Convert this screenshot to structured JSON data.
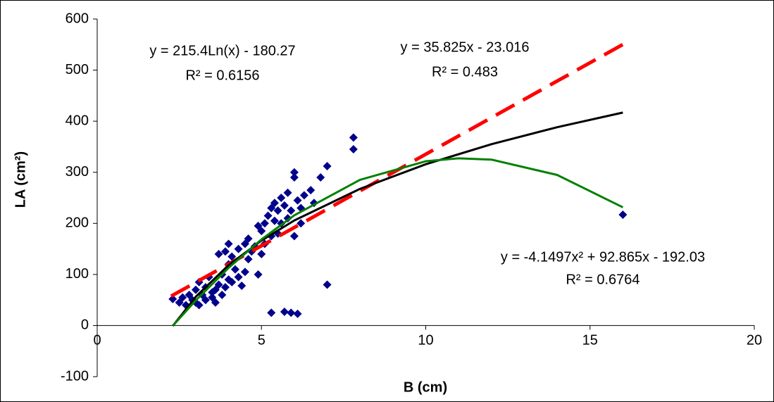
{
  "chart_data": {
    "type": "scatter",
    "x_label": "B (cm)",
    "y_label": "LA (cm²)",
    "xlim": [
      0,
      20
    ],
    "ylim": [
      -100,
      600
    ],
    "xticks": [
      0,
      5,
      10,
      15,
      20
    ],
    "yticks": [
      -100,
      0,
      100,
      200,
      300,
      400,
      500,
      600
    ],
    "annotations": [
      "y = 215.4Ln(x) - 180.27",
      "R² = 0.6156",
      "y = 35.825x - 23.016",
      "R² = 0.483",
      "y = -4.1497x² + 92.865x - 192.03",
      "R² = 0.6764"
    ],
    "series": [
      {
        "name": "data",
        "kind": "points",
        "color": "#00008b",
        "x": [
          2.3,
          2.5,
          2.6,
          2.7,
          2.8,
          2.9,
          3.0,
          3.0,
          3.1,
          3.1,
          3.2,
          3.3,
          3.3,
          3.4,
          3.5,
          3.5,
          3.6,
          3.6,
          3.7,
          3.7,
          3.8,
          3.8,
          3.9,
          3.9,
          4.0,
          4.0,
          4.0,
          4.1,
          4.1,
          4.2,
          4.3,
          4.3,
          4.4,
          4.5,
          4.5,
          4.6,
          4.6,
          4.7,
          4.8,
          4.9,
          4.9,
          5.0,
          5.0,
          5.1,
          5.1,
          5.2,
          5.3,
          5.3,
          5.3,
          5.4,
          5.4,
          5.5,
          5.5,
          5.6,
          5.6,
          5.7,
          5.7,
          5.8,
          5.8,
          5.9,
          5.9,
          6.0,
          6.0,
          6.0,
          6.1,
          6.1,
          6.2,
          6.2,
          6.3,
          6.5,
          6.6,
          6.8,
          7.0,
          7.0,
          7.8,
          7.8,
          16.0
        ],
        "values": [
          52,
          45,
          55,
          40,
          60,
          50,
          45,
          70,
          85,
          40,
          60,
          75,
          50,
          95,
          55,
          65,
          70,
          45,
          80,
          140,
          60,
          100,
          145,
          75,
          160,
          90,
          120,
          85,
          135,
          110,
          95,
          150,
          78,
          105,
          160,
          170,
          130,
          145,
          155,
          100,
          195,
          140,
          185,
          200,
          160,
          215,
          230,
          25,
          175,
          205,
          240,
          225,
          180,
          250,
          200,
          235,
          27,
          260,
          210,
          225,
          25,
          175,
          300,
          290,
          245,
          23,
          230,
          200,
          255,
          265,
          240,
          290,
          312,
          80,
          345,
          368,
          217
        ]
      },
      {
        "name": "linear",
        "kind": "line",
        "color": "#ff0000",
        "dashed": true,
        "x": [
          2.25,
          16
        ],
        "values": [
          57.6,
          550.2
        ]
      },
      {
        "name": "logarithmic",
        "kind": "line",
        "color": "#000000",
        "x": [
          2.3,
          3,
          4,
          5,
          6,
          8,
          10,
          12,
          14,
          16
        ],
        "values": [
          -0.9,
          56.4,
          118.3,
          166.4,
          205.7,
          267.6,
          315.7,
          355.0,
          388.2,
          416.9
        ]
      },
      {
        "name": "polynomial",
        "kind": "line",
        "color": "#008000",
        "x": [
          2.3,
          3,
          4,
          5,
          6,
          8,
          10,
          11,
          12,
          14,
          16
        ],
        "values": [
          -0.4,
          49.2,
          113.0,
          168.6,
          215.8,
          285.3,
          321.6,
          327.4,
          324.8,
          294.8,
          231.5
        ]
      }
    ]
  }
}
